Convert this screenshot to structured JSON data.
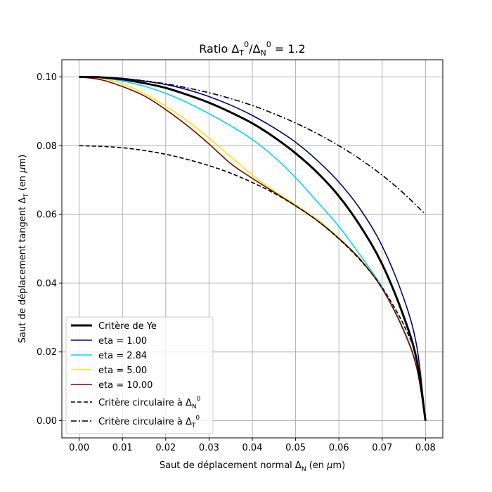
{
  "chart_data": {
    "type": "line",
    "title": "Ratio ΔT⁰/ΔN⁰ = 1.2",
    "title_parts": {
      "prefix": "Ratio Δ",
      "sub1": "T",
      "sup1": "0",
      "mid": "/Δ",
      "sub2": "N",
      "sup2": "0",
      "suffix": " = 1.2"
    },
    "xlabel": "Saut de déplacement normal ΔN (en μm)",
    "xlabel_parts": {
      "prefix": "Saut de déplacement normal Δ",
      "sub": "N",
      "suffix": " (en ",
      "mu": "μ",
      "unit": "m)"
    },
    "ylabel": "Saut de déplacement tangent ΔT (en μm)",
    "ylabel_parts": {
      "prefix": "Saut de déplacement tangent Δ",
      "sub": "T",
      "suffix": " (en ",
      "mu": "μ",
      "unit": "m)"
    },
    "xlim": [
      -0.004,
      0.084
    ],
    "ylim": [
      -0.005,
      0.105
    ],
    "xticks": [
      0.0,
      0.01,
      0.02,
      0.03,
      0.04,
      0.05,
      0.06,
      0.07,
      0.08
    ],
    "xtick_labels": [
      "0.00",
      "0.01",
      "0.02",
      "0.03",
      "0.04",
      "0.05",
      "0.06",
      "0.07",
      "0.08"
    ],
    "yticks": [
      0.0,
      0.02,
      0.04,
      0.06,
      0.08,
      0.1
    ],
    "ytick_labels": [
      "0.00",
      "0.02",
      "0.04",
      "0.06",
      "0.08",
      "0.10"
    ],
    "grid": true,
    "legend_position": "lower-left",
    "series": [
      {
        "name": "Critère de Ye",
        "label": "Critère de Ye",
        "color": "#000000",
        "style": "solid",
        "width": 3,
        "x": [
          0.0,
          0.005,
          0.01,
          0.015,
          0.02,
          0.025,
          0.03,
          0.035,
          0.04,
          0.045,
          0.05,
          0.055,
          0.06,
          0.065,
          0.07,
          0.075,
          0.078,
          0.08
        ],
        "y": [
          0.1,
          0.0999,
          0.0993,
          0.0982,
          0.0968,
          0.0948,
          0.0925,
          0.0897,
          0.0865,
          0.0825,
          0.0778,
          0.0722,
          0.0653,
          0.0565,
          0.0455,
          0.0302,
          0.0175,
          0.0
        ]
      },
      {
        "name": "eta = 1.00",
        "label": "eta = 1.00",
        "color": "#00007f",
        "style": "solid",
        "width": 1.6,
        "x": [
          0.0,
          0.005,
          0.01,
          0.015,
          0.02,
          0.025,
          0.03,
          0.035,
          0.04,
          0.045,
          0.05,
          0.055,
          0.06,
          0.065,
          0.07,
          0.075,
          0.078,
          0.08
        ],
        "y": [
          0.1,
          0.0999,
          0.0996,
          0.0988,
          0.0978,
          0.0963,
          0.0943,
          0.0918,
          0.0888,
          0.0852,
          0.081,
          0.0757,
          0.0694,
          0.0614,
          0.0508,
          0.0355,
          0.0215,
          0.0
        ]
      },
      {
        "name": "eta = 2.84",
        "label": "eta = 2.84",
        "color": "#00d4ff",
        "style": "solid",
        "width": 1.6,
        "x": [
          0.0,
          0.005,
          0.01,
          0.015,
          0.02,
          0.025,
          0.03,
          0.035,
          0.04,
          0.045,
          0.05,
          0.055,
          0.06,
          0.065,
          0.07,
          0.075,
          0.078,
          0.08
        ],
        "y": [
          0.1,
          0.0998,
          0.0988,
          0.0973,
          0.0952,
          0.0925,
          0.0893,
          0.0858,
          0.0818,
          0.0768,
          0.0707,
          0.0637,
          0.0565,
          0.048,
          0.0388,
          0.0265,
          0.0155,
          0.0
        ]
      },
      {
        "name": "eta = 5.00",
        "label": "eta = 5.00",
        "color": "#ffe500",
        "style": "solid",
        "width": 1.6,
        "x": [
          0.0,
          0.005,
          0.01,
          0.015,
          0.02,
          0.025,
          0.03,
          0.035,
          0.04,
          0.045,
          0.05,
          0.055,
          0.06,
          0.065,
          0.07,
          0.075,
          0.078,
          0.08
        ],
        "y": [
          0.1,
          0.0996,
          0.098,
          0.0952,
          0.0915,
          0.0872,
          0.0822,
          0.0768,
          0.0715,
          0.0668,
          0.0628,
          0.0585,
          0.0532,
          0.047,
          0.0385,
          0.0262,
          0.0152,
          0.0
        ]
      },
      {
        "name": "eta = 10.00",
        "label": "eta = 10.00",
        "color": "#7f0000",
        "style": "solid",
        "width": 1.6,
        "x": [
          0.0,
          0.005,
          0.01,
          0.015,
          0.02,
          0.025,
          0.03,
          0.035,
          0.04,
          0.045,
          0.05,
          0.055,
          0.06,
          0.065,
          0.07,
          0.075,
          0.078,
          0.08
        ],
        "y": [
          0.1,
          0.0992,
          0.0972,
          0.0945,
          0.0905,
          0.0858,
          0.0805,
          0.0748,
          0.0705,
          0.0665,
          0.0625,
          0.0582,
          0.053,
          0.0468,
          0.0384,
          0.0261,
          0.0152,
          0.0
        ]
      },
      {
        "name": "Critère circulaire à ΔN⁰",
        "label_parts": {
          "prefix": "Critère circulaire à Δ",
          "sub": "N",
          "sup": "0"
        },
        "color": "#000000",
        "style": "dashed",
        "width": 1.6,
        "x": [
          0.0,
          0.005,
          0.01,
          0.015,
          0.02,
          0.025,
          0.03,
          0.035,
          0.04,
          0.045,
          0.05,
          0.055,
          0.06,
          0.065,
          0.07,
          0.075,
          0.078,
          0.08
        ],
        "y": [
          0.08,
          0.0798,
          0.0794,
          0.0786,
          0.0775,
          0.076,
          0.0742,
          0.072,
          0.0693,
          0.0662,
          0.0625,
          0.0582,
          0.0529,
          0.0466,
          0.0387,
          0.0278,
          0.0177,
          0.0
        ]
      },
      {
        "name": "Critère circulaire à ΔT⁰",
        "label_parts": {
          "prefix": "Critère circulaire à Δ",
          "sub": "T",
          "sup": "0"
        },
        "color": "#000000",
        "style": "dashdot",
        "width": 1.6,
        "x": [
          0.0,
          0.005,
          0.01,
          0.015,
          0.02,
          0.025,
          0.03,
          0.035,
          0.04,
          0.045,
          0.05,
          0.055,
          0.06,
          0.065,
          0.07,
          0.075,
          0.08
        ],
        "y": [
          0.1,
          0.0999,
          0.0995,
          0.0989,
          0.098,
          0.0968,
          0.0954,
          0.0937,
          0.0917,
          0.0893,
          0.0866,
          0.0835,
          0.08,
          0.076,
          0.0714,
          0.0661,
          0.06
        ]
      }
    ]
  }
}
